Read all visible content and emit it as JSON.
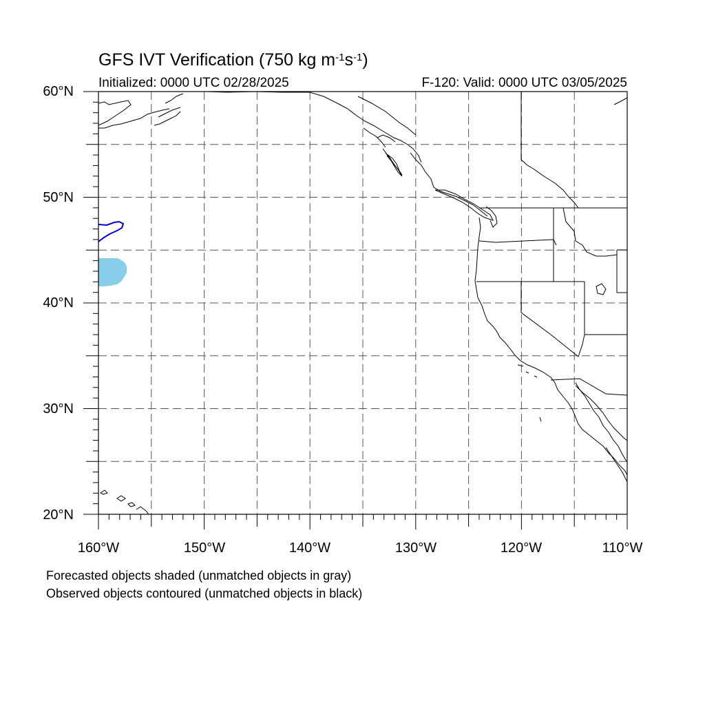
{
  "title": {
    "main": "GFS IVT Verification (750 kg m",
    "sup1": "-1",
    "mid": "s",
    "sup2": "-1",
    "close": ")"
  },
  "initialized": "Initialized: 0000 UTC 02/28/2025",
  "valid": "F-120: Valid: 0000 UTC 03/05/2025",
  "lat_labels": [
    "60°N",
    "50°N",
    "40°N",
    "30°N",
    "20°N"
  ],
  "lon_labels": [
    "160°W",
    "150°W",
    "140°W",
    "130°W",
    "120°W",
    "110°W"
  ],
  "notes": [
    "Forecasted objects shaded (unmatched objects in gray)",
    "Observed objects contoured (unmatched objects in black)"
  ],
  "colors": {
    "forecast_matched": "#87ceeb",
    "observed_matched": "#0000cc",
    "coastline": "#000000",
    "grid": "#555555"
  },
  "map_extent": {
    "lon": [
      -160,
      -110
    ],
    "lat": [
      20,
      60
    ]
  },
  "gridlines": "dashed every 5°",
  "objects": {
    "forecast_shaded": {
      "color_name": "light-blue",
      "lon_range": [
        -160,
        -157.6
      ],
      "lat_range": [
        41.7,
        44.4
      ]
    },
    "observed_contour": {
      "color_name": "blue",
      "lon_range": [
        -160,
        -157.9
      ],
      "lat_range": [
        45.8,
        47.7
      ]
    }
  }
}
